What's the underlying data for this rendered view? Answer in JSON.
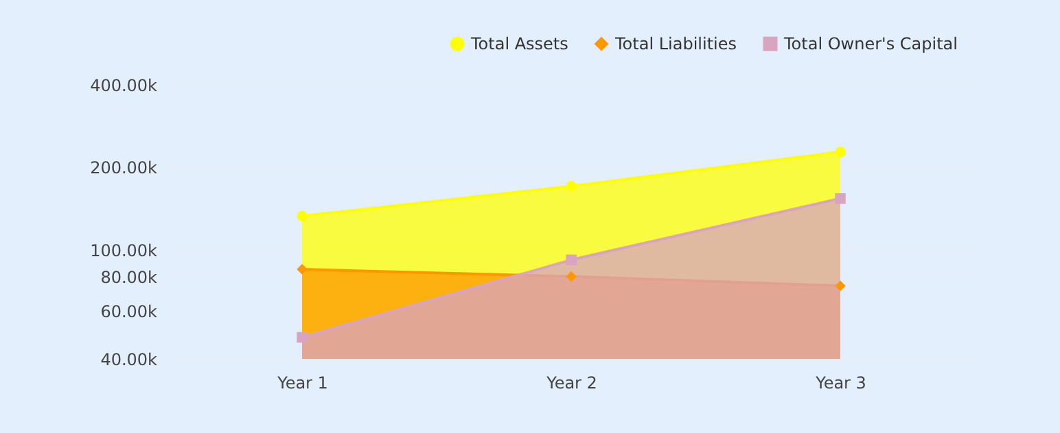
{
  "chart_data": {
    "type": "area",
    "categories": [
      "Year 1",
      "Year 2",
      "Year 3"
    ],
    "series": [
      {
        "name": "Total Assets",
        "color": "#ffff00",
        "marker": "circle",
        "values": [
          133000,
          171000,
          228000
        ]
      },
      {
        "name": "Total Liabilities",
        "color": "#ff9800",
        "marker": "diamond",
        "values": [
          85000,
          80000,
          74000
        ]
      },
      {
        "name": "Total Owner's Capital",
        "color": "#d8a4c0",
        "marker": "square",
        "values": [
          48000,
          92000,
          154000
        ]
      }
    ],
    "log": "y",
    "ylim": [
      40000,
      400000
    ],
    "yticks": [
      {
        "value": 40000,
        "label": "40.00k"
      },
      {
        "value": 60000,
        "label": "60.00k"
      },
      {
        "value": 80000,
        "label": "80.00k"
      },
      {
        "value": 100000,
        "label": "100.00k"
      },
      {
        "value": 200000,
        "label": "200.00k"
      },
      {
        "value": 400000,
        "label": "400.00k"
      }
    ],
    "grid": "y",
    "legend": "top right",
    "line_style": "solid"
  }
}
